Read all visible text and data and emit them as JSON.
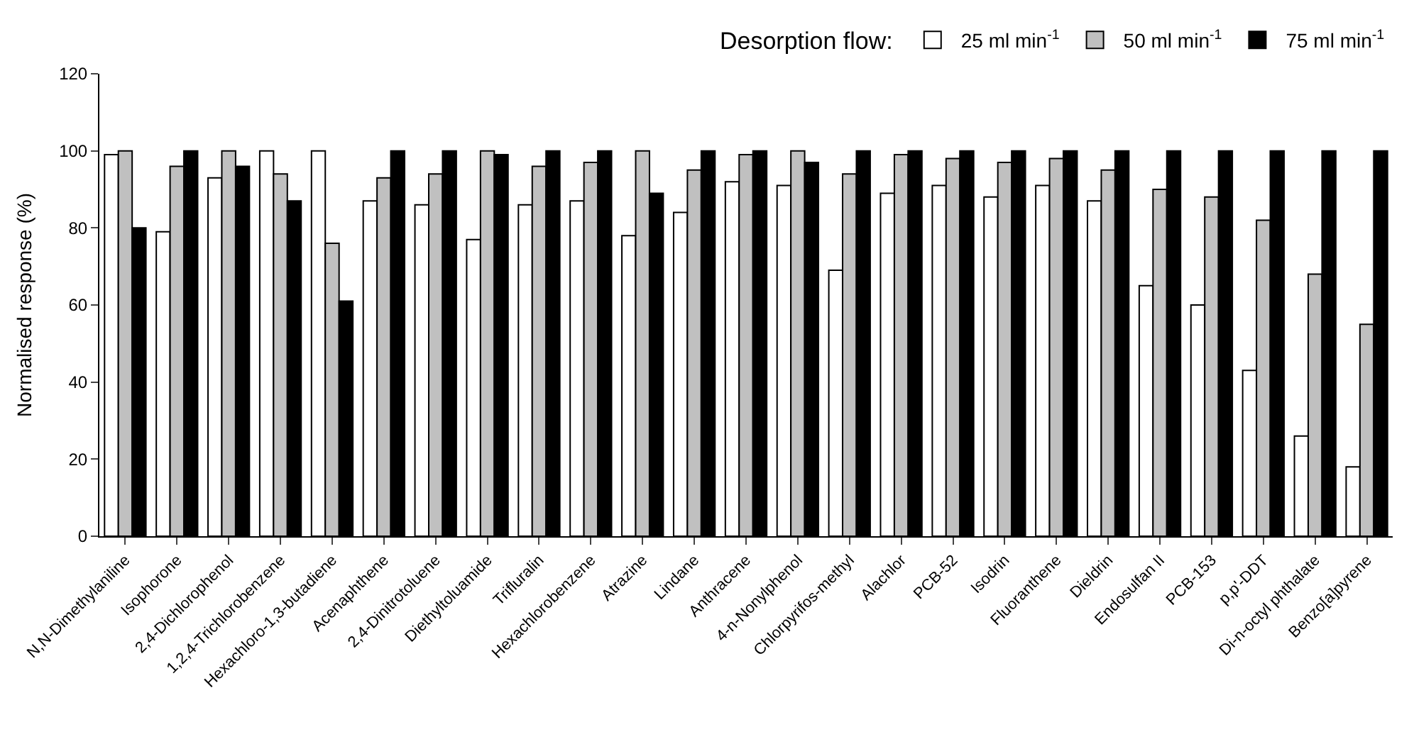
{
  "chart_data": {
    "type": "bar",
    "ylabel": "Normalised response (%)",
    "legend_title": "Desorption flow:",
    "legend": "top right",
    "categories": [
      "N,N-Dimethylaniline",
      "Isophorone",
      "2,4-Dichlorophenol",
      "1,2,4-Trichlorobenzene",
      "Hexachloro-1,3-butadiene",
      "Acenaphthene",
      "2,4-Dinitrotoluene",
      "Diethyltoluamide",
      "Trifluralin",
      "Hexachlorobenzene",
      "Atrazine",
      "Lindane",
      "Anthracene",
      "4-n-Nonylphenol",
      "Chlorpyrifos-methyl",
      "Alachlor",
      "PCB-52",
      "Isodrin",
      "Fluoranthene",
      "Dieldrin",
      "Endosulfan II",
      "PCB-153",
      "p,p'-DDT",
      "Di-n-octyl phthalate",
      "Benzo[a]pyrene"
    ],
    "ylim": [
      0,
      120
    ],
    "yticks": [
      0,
      20,
      40,
      60,
      80,
      100,
      120
    ],
    "series": [
      {
        "name": "25 ml min$^{-1}$",
        "color": "#ffffff",
        "values": [
          99,
          79,
          93,
          100,
          100,
          87,
          86,
          77,
          86,
          87,
          78,
          84,
          92,
          91,
          69,
          89,
          91,
          88,
          91,
          87,
          65,
          60,
          43,
          26,
          18
        ]
      },
      {
        "name": "50 ml min$^{-1}$",
        "color": "#c0c0c0",
        "values": [
          100,
          96,
          100,
          94,
          76,
          93,
          94,
          100,
          96,
          97,
          100,
          95,
          99,
          100,
          94,
          99,
          98,
          97,
          98,
          95,
          90,
          88,
          82,
          68,
          55
        ]
      },
      {
        "name": "75 ml min$^{-1}$",
        "color": "#000000",
        "values": [
          80,
          100,
          96,
          87,
          61,
          100,
          100,
          99,
          100,
          100,
          89,
          100,
          100,
          97,
          100,
          100,
          100,
          100,
          100,
          100,
          100,
          100,
          100,
          100,
          100
        ]
      }
    ]
  }
}
